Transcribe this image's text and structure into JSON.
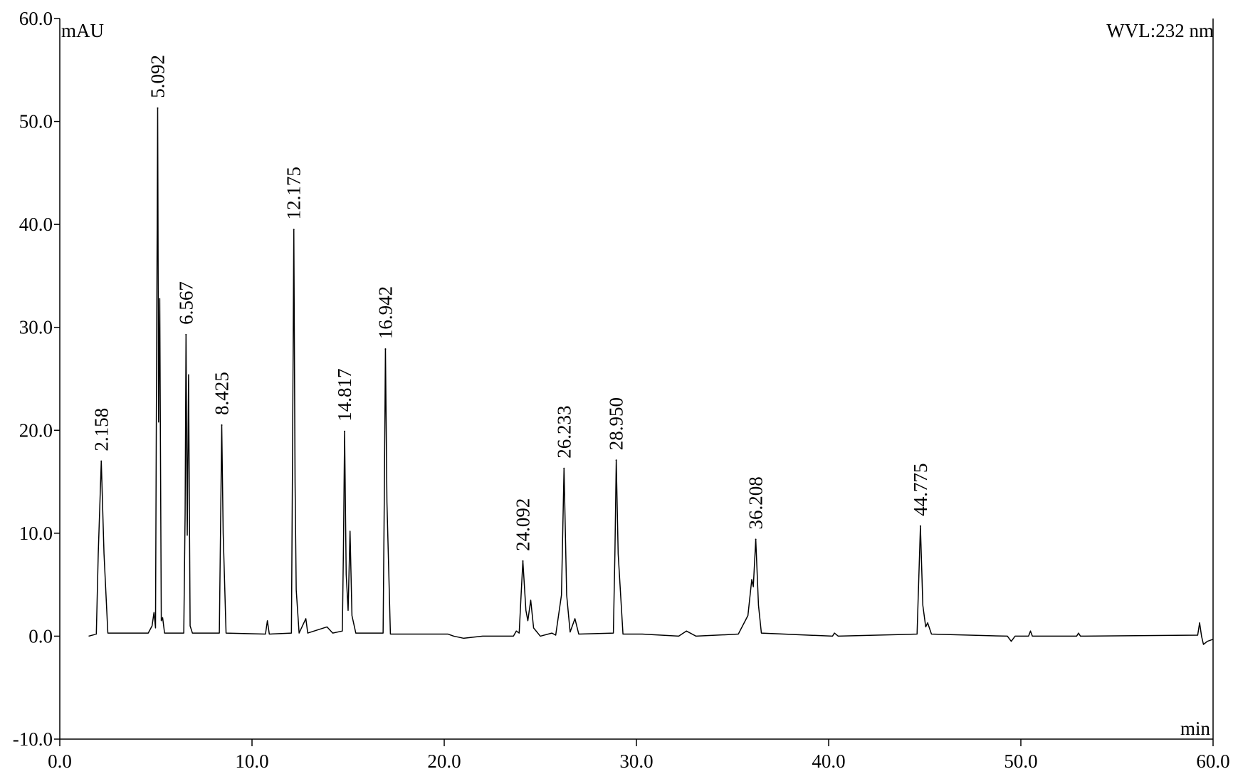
{
  "chart_data": {
    "type": "line",
    "ylabel": "mAU",
    "xlabel": "min",
    "annotation": "WVL:232 nm",
    "x": [
      1.5,
      1.9,
      2.0,
      2.158,
      2.3,
      2.5,
      4.6,
      4.8,
      4.9,
      4.98,
      5.02,
      5.092,
      5.14,
      5.2,
      5.28,
      5.35,
      5.45,
      6.45,
      6.52,
      6.567,
      6.63,
      6.7,
      6.78,
      6.9,
      8.3,
      8.36,
      8.425,
      8.5,
      8.65,
      10.7,
      10.8,
      10.9,
      12.05,
      12.11,
      12.175,
      12.24,
      12.3,
      12.45,
      12.8,
      12.9,
      13.9,
      14.2,
      14.7,
      14.76,
      14.817,
      14.9,
      15.0,
      15.1,
      15.2,
      15.4,
      16.82,
      16.88,
      16.942,
      17.02,
      17.2,
      20.2,
      20.5,
      21.0,
      22.0,
      23.6,
      23.75,
      23.9,
      24.0,
      24.092,
      24.25,
      24.35,
      24.5,
      24.65,
      25.0,
      25.6,
      25.8,
      26.1,
      26.233,
      26.37,
      26.55,
      26.8,
      27.0,
      28.8,
      28.88,
      28.95,
      29.05,
      29.3,
      30.3,
      32.2,
      32.6,
      33.1,
      35.3,
      35.8,
      36.0,
      36.08,
      36.208,
      36.35,
      36.5,
      40.2,
      40.3,
      40.5,
      44.6,
      44.68,
      44.775,
      44.9,
      45.05,
      45.15,
      45.35,
      49.3,
      49.5,
      49.7,
      50.4,
      50.5,
      50.6,
      52.9,
      53.0,
      53.1,
      59.2,
      59.3,
      59.4,
      59.5,
      59.7,
      60.0
    ],
    "series": [
      {
        "color": "#000000",
        "values": [
          0,
          0.2,
          8,
          17.0,
          8,
          0.3,
          0.3,
          1,
          2.3,
          0.8,
          20,
          51.3,
          20.8,
          32.8,
          1.5,
          1.8,
          0.3,
          0.3,
          12,
          29.3,
          9.8,
          25.4,
          1,
          0.3,
          0.3,
          10,
          20.5,
          10,
          0.3,
          0.2,
          1.5,
          0.2,
          0.3,
          18,
          39.5,
          15,
          4.5,
          0.3,
          1.7,
          0.3,
          0.9,
          0.3,
          0.5,
          9,
          19.9,
          6,
          2.5,
          10.2,
          2,
          0.3,
          0.3,
          13,
          27.9,
          13,
          0.2,
          0.2,
          0,
          -0.2,
          0,
          0,
          0.5,
          0.3,
          4,
          7.3,
          2.5,
          1.5,
          3.5,
          0.8,
          0,
          0.3,
          0.1,
          4,
          16.3,
          4,
          0.4,
          1.7,
          0.2,
          0.3,
          8,
          17.1,
          8,
          0.2,
          0.2,
          0,
          0.5,
          0,
          0.2,
          2,
          5.5,
          4.8,
          9.4,
          3,
          0.3,
          0,
          0.3,
          0,
          0.2,
          5,
          10.7,
          3,
          0.9,
          1.3,
          0.2,
          0,
          -0.5,
          0,
          0,
          0.5,
          0,
          0,
          0.3,
          0,
          0.1,
          1.3,
          0,
          -0.8,
          -0.5,
          -0.3
        ]
      }
    ],
    "peaks": {
      "x": [
        2.158,
        5.092,
        6.567,
        8.425,
        12.175,
        14.817,
        16.942,
        24.092,
        26.233,
        28.95,
        36.208,
        44.775
      ],
      "values": [
        17.0,
        51.3,
        29.3,
        20.5,
        39.5,
        19.9,
        27.9,
        7.3,
        16.3,
        17.1,
        9.4,
        10.7
      ],
      "value_labels": [
        "2.158",
        "5.092",
        "6.567",
        "8.425",
        "12.175",
        "14.817",
        "16.942",
        "24.092",
        "26.233",
        "28.950",
        "36.208",
        "44.775"
      ]
    },
    "xlim": [
      0,
      60
    ],
    "xticks": [
      {
        "value": 0,
        "label": "0.0"
      },
      {
        "value": 10,
        "label": "10.0"
      },
      {
        "value": 20,
        "label": "20.0"
      },
      {
        "value": 30,
        "label": "30.0"
      },
      {
        "value": 40,
        "label": "40.0"
      },
      {
        "value": 50,
        "label": "50.0"
      },
      {
        "value": 60,
        "label": "60.0"
      }
    ],
    "ylim": [
      -10,
      60
    ],
    "yticks": [
      {
        "value": -10,
        "label": "-10.0"
      },
      {
        "value": 0,
        "label": "0.0"
      },
      {
        "value": 10,
        "label": "10.0"
      },
      {
        "value": 20,
        "label": "20.0"
      },
      {
        "value": 30,
        "label": "30.0"
      },
      {
        "value": 40,
        "label": "40.0"
      },
      {
        "value": 50,
        "label": "50.0"
      },
      {
        "value": 60,
        "label": "60.0"
      }
    ],
    "grid": false
  }
}
